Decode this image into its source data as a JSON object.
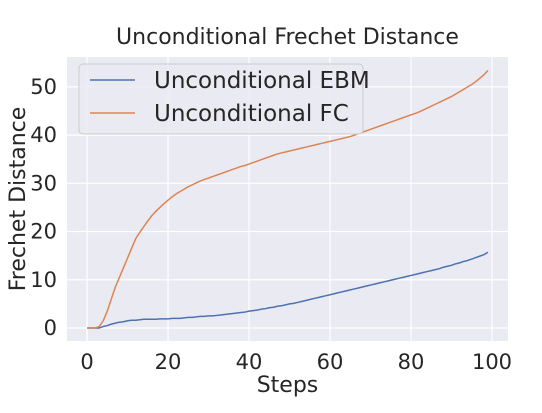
{
  "chart_data": {
    "type": "line",
    "title": "Unconditional Frechet Distance",
    "xlabel": "Steps",
    "ylabel": "Frechet Distance",
    "xlim": [
      -4.95,
      103.95
    ],
    "ylim": [
      -2.7,
      56.2
    ],
    "xticks": [
      0,
      20,
      40,
      60,
      80,
      100
    ],
    "yticks": [
      0,
      10,
      20,
      30,
      40,
      50
    ],
    "grid": true,
    "legend_position": "top-left",
    "x": [
      0,
      1,
      2,
      3,
      4,
      5,
      6,
      7,
      8,
      9,
      10,
      11,
      12,
      13,
      14,
      15,
      16,
      17,
      18,
      19,
      20,
      21,
      22,
      23,
      24,
      25,
      26,
      27,
      28,
      29,
      30,
      31,
      32,
      33,
      34,
      35,
      36,
      37,
      38,
      39,
      40,
      41,
      42,
      43,
      44,
      45,
      46,
      47,
      48,
      49,
      50,
      51,
      52,
      53,
      54,
      55,
      56,
      57,
      58,
      59,
      60,
      61,
      62,
      63,
      64,
      65,
      66,
      67,
      68,
      69,
      70,
      71,
      72,
      73,
      74,
      75,
      76,
      77,
      78,
      79,
      80,
      81,
      82,
      83,
      84,
      85,
      86,
      87,
      88,
      89,
      90,
      91,
      92,
      93,
      94,
      95,
      96,
      97,
      98,
      99
    ],
    "series": [
      {
        "name": "Unconditional EBM",
        "color": "#4c72b0",
        "values": [
          0,
          0,
          0,
          0,
          0.3,
          0.5,
          0.8,
          1.0,
          1.2,
          1.3,
          1.5,
          1.6,
          1.6,
          1.7,
          1.8,
          1.8,
          1.8,
          1.8,
          1.9,
          1.9,
          1.9,
          2.0,
          2.0,
          2.0,
          2.1,
          2.2,
          2.2,
          2.3,
          2.4,
          2.4,
          2.5,
          2.5,
          2.6,
          2.7,
          2.8,
          2.9,
          3.0,
          3.1,
          3.2,
          3.3,
          3.5,
          3.6,
          3.7,
          3.9,
          4.0,
          4.2,
          4.3,
          4.5,
          4.6,
          4.8,
          5.0,
          5.1,
          5.3,
          5.5,
          5.7,
          5.9,
          6.1,
          6.3,
          6.5,
          6.7,
          6.9,
          7.1,
          7.3,
          7.5,
          7.7,
          7.9,
          8.1,
          8.3,
          8.5,
          8.7,
          8.9,
          9.1,
          9.3,
          9.5,
          9.7,
          9.9,
          10.1,
          10.3,
          10.5,
          10.7,
          10.9,
          11.1,
          11.3,
          11.5,
          11.7,
          11.9,
          12.1,
          12.3,
          12.6,
          12.8,
          13.0,
          13.3,
          13.5,
          13.8,
          14.0,
          14.3,
          14.6,
          14.9,
          15.2,
          15.7
        ]
      },
      {
        "name": "Unconditional FC",
        "color": "#dd8452",
        "values": [
          0,
          0,
          0,
          0.3,
          1.5,
          3.5,
          6.0,
          8.5,
          10.5,
          12.5,
          14.5,
          16.5,
          18.5,
          19.8,
          21.0,
          22.2,
          23.3,
          24.2,
          25.0,
          25.8,
          26.5,
          27.2,
          27.8,
          28.3,
          28.8,
          29.3,
          29.7,
          30.1,
          30.5,
          30.8,
          31.1,
          31.4,
          31.7,
          32.0,
          32.3,
          32.6,
          32.9,
          33.2,
          33.5,
          33.7,
          34.0,
          34.3,
          34.6,
          34.9,
          35.2,
          35.5,
          35.8,
          36.1,
          36.3,
          36.5,
          36.7,
          36.9,
          37.1,
          37.3,
          37.5,
          37.7,
          37.9,
          38.1,
          38.3,
          38.5,
          38.7,
          38.9,
          39.1,
          39.3,
          39.5,
          39.7,
          40.0,
          40.3,
          40.6,
          40.9,
          41.2,
          41.5,
          41.8,
          42.1,
          42.4,
          42.7,
          43.0,
          43.3,
          43.6,
          43.9,
          44.2,
          44.5,
          44.8,
          45.2,
          45.6,
          46.0,
          46.4,
          46.8,
          47.2,
          47.6,
          48.0,
          48.5,
          49.0,
          49.5,
          50.0,
          50.5,
          51.1,
          51.8,
          52.5,
          53.4
        ]
      }
    ]
  }
}
